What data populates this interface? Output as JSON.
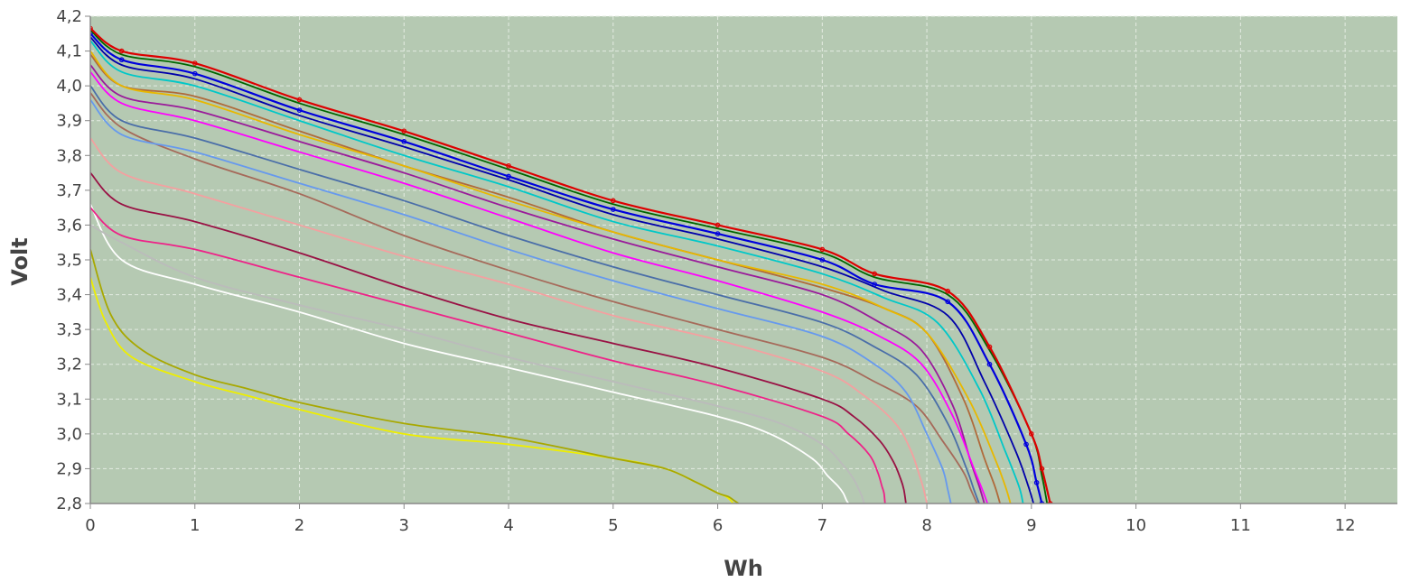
{
  "chart_data": {
    "type": "line",
    "title": "",
    "xlabel": "Wh",
    "ylabel": "Volt",
    "xlim": [
      0,
      12.5
    ],
    "ylim": [
      2.8,
      4.2
    ],
    "x_ticks": [
      0,
      1,
      2,
      3,
      4,
      5,
      6,
      7,
      8,
      9,
      10,
      11,
      12
    ],
    "x_tick_labels": [
      "0",
      "1",
      "2",
      "3",
      "4",
      "5",
      "6",
      "7",
      "8",
      "9",
      "10",
      "11",
      "12"
    ],
    "y_ticks": [
      2.8,
      2.9,
      3.0,
      3.1,
      3.2,
      3.3,
      3.4,
      3.5,
      3.6,
      3.7,
      3.8,
      3.9,
      4.0,
      4.1,
      4.2
    ],
    "y_tick_labels": [
      "2,8",
      "2,9",
      "3,0",
      "3,1",
      "3,2",
      "3,3",
      "3,4",
      "3,5",
      "3,6",
      "3,7",
      "3,8",
      "3,9",
      "4,0",
      "4,1",
      "4,2"
    ],
    "grid": true,
    "legend": "none",
    "colors": {
      "plot_background": "#b5c9b2",
      "grid": "#e4ece2",
      "axis": "#888888"
    },
    "series": [
      {
        "color": "#dd0000",
        "marker": true,
        "x": [
          0,
          0.3,
          1,
          2,
          3,
          4,
          5,
          6,
          7,
          7.5,
          8.2,
          8.6,
          9.0,
          9.1,
          9.18
        ],
        "y": [
          4.165,
          4.1,
          4.065,
          3.96,
          3.87,
          3.77,
          3.67,
          3.6,
          3.53,
          3.46,
          3.41,
          3.25,
          3.0,
          2.9,
          2.8
        ]
      },
      {
        "color": "#006600",
        "marker": false,
        "x": [
          0,
          0.3,
          1,
          2,
          3,
          4,
          5,
          6,
          7,
          7.5,
          8.2,
          8.6,
          9.0,
          9.1,
          9.15
        ],
        "y": [
          4.16,
          4.09,
          4.055,
          3.95,
          3.86,
          3.76,
          3.66,
          3.59,
          3.52,
          3.45,
          3.4,
          3.24,
          3.0,
          2.88,
          2.8
        ]
      },
      {
        "color": "#0000dd",
        "marker": true,
        "x": [
          0,
          0.3,
          1,
          2,
          3,
          4,
          5,
          6,
          7,
          7.5,
          8.2,
          8.6,
          8.95,
          9.05,
          9.1
        ],
        "y": [
          4.15,
          4.075,
          4.035,
          3.93,
          3.84,
          3.74,
          3.645,
          3.575,
          3.5,
          3.43,
          3.38,
          3.2,
          2.97,
          2.86,
          2.8
        ]
      },
      {
        "color": "#0000aa",
        "marker": false,
        "x": [
          0,
          0.3,
          1,
          2,
          3,
          4,
          5,
          6,
          7,
          7.6,
          8.2,
          8.55,
          8.85,
          8.97,
          9.02
        ],
        "y": [
          4.14,
          4.06,
          4.02,
          3.915,
          3.825,
          3.73,
          3.63,
          3.56,
          3.48,
          3.41,
          3.34,
          3.15,
          2.95,
          2.85,
          2.8
        ]
      },
      {
        "color": "#00c8c8",
        "marker": false,
        "x": [
          0,
          0.3,
          1,
          2,
          3,
          4,
          5,
          6,
          7,
          7.6,
          8.1,
          8.5,
          8.75,
          8.88,
          8.92
        ],
        "y": [
          4.13,
          4.04,
          4.0,
          3.9,
          3.8,
          3.71,
          3.61,
          3.54,
          3.46,
          3.39,
          3.32,
          3.13,
          2.95,
          2.85,
          2.8
        ]
      },
      {
        "color": "#e8b800",
        "marker": false,
        "x": [
          0,
          0.3,
          1,
          2,
          3,
          4,
          5,
          6,
          7,
          7.6,
          8.0,
          8.4,
          8.65,
          8.75,
          8.8
        ],
        "y": [
          4.1,
          4.0,
          3.96,
          3.86,
          3.77,
          3.67,
          3.58,
          3.5,
          3.43,
          3.36,
          3.29,
          3.1,
          2.93,
          2.85,
          2.8
        ]
      },
      {
        "color": "#b06a3a",
        "marker": false,
        "x": [
          0,
          0.3,
          1,
          2,
          3,
          4,
          5,
          6,
          7,
          7.6,
          8.0,
          8.35,
          8.55,
          8.65,
          8.7
        ],
        "y": [
          4.09,
          4.0,
          3.97,
          3.87,
          3.77,
          3.68,
          3.58,
          3.5,
          3.42,
          3.36,
          3.29,
          3.1,
          2.93,
          2.85,
          2.8
        ]
      },
      {
        "color": "#ff00ff",
        "marker": false,
        "x": [
          0,
          0.3,
          1,
          2,
          3,
          4,
          5,
          6,
          7,
          7.55,
          7.95,
          8.25,
          8.45,
          8.53,
          8.58
        ],
        "y": [
          4.04,
          3.95,
          3.9,
          3.81,
          3.72,
          3.62,
          3.52,
          3.44,
          3.35,
          3.28,
          3.2,
          3.05,
          2.9,
          2.84,
          2.8
        ]
      },
      {
        "color": "#9a1a9a",
        "marker": false,
        "x": [
          0,
          0.3,
          1,
          2,
          3,
          4,
          5,
          6,
          7,
          7.55,
          7.95,
          8.25,
          8.42,
          8.5,
          8.55
        ],
        "y": [
          4.06,
          3.97,
          3.93,
          3.84,
          3.75,
          3.65,
          3.56,
          3.48,
          3.4,
          3.32,
          3.24,
          3.08,
          2.92,
          2.85,
          2.8
        ]
      },
      {
        "color": "#4a6ea8",
        "marker": false,
        "x": [
          0,
          0.3,
          1,
          2,
          3,
          4,
          5,
          6,
          7,
          7.5,
          7.9,
          8.2,
          8.38,
          8.45,
          8.5
        ],
        "y": [
          4.0,
          3.9,
          3.85,
          3.76,
          3.67,
          3.57,
          3.48,
          3.4,
          3.32,
          3.25,
          3.17,
          3.03,
          2.9,
          2.84,
          2.8
        ]
      },
      {
        "color": "#6699ee",
        "marker": false,
        "x": [
          0,
          0.3,
          1,
          2,
          3,
          4,
          5,
          6,
          7,
          7.5,
          7.8,
          8.0,
          8.15,
          8.2,
          8.23
        ],
        "y": [
          3.96,
          3.86,
          3.81,
          3.72,
          3.63,
          3.53,
          3.44,
          3.36,
          3.28,
          3.2,
          3.12,
          3.0,
          2.9,
          2.84,
          2.8
        ]
      },
      {
        "color": "#a66a5a",
        "marker": false,
        "x": [
          0,
          0.3,
          1,
          2,
          3,
          4,
          5,
          6,
          7,
          7.5,
          7.9,
          8.15,
          8.35,
          8.42,
          8.48
        ],
        "y": [
          3.98,
          3.88,
          3.79,
          3.69,
          3.57,
          3.47,
          3.38,
          3.3,
          3.22,
          3.15,
          3.08,
          2.98,
          2.89,
          2.84,
          2.8
        ]
      },
      {
        "color": "#f4a0a0",
        "marker": false,
        "x": [
          0,
          0.3,
          1,
          2,
          3,
          4,
          5,
          6,
          7,
          7.4,
          7.7,
          7.85,
          7.93,
          7.97,
          8.0
        ],
        "y": [
          3.85,
          3.75,
          3.69,
          3.6,
          3.51,
          3.43,
          3.34,
          3.27,
          3.18,
          3.11,
          3.03,
          2.95,
          2.88,
          2.84,
          2.8
        ]
      },
      {
        "color": "#991144",
        "marker": false,
        "x": [
          0,
          0.3,
          1,
          2,
          3,
          4,
          5,
          6,
          7,
          7.3,
          7.55,
          7.68,
          7.75,
          7.78,
          7.8
        ],
        "y": [
          3.75,
          3.66,
          3.61,
          3.52,
          3.42,
          3.33,
          3.26,
          3.19,
          3.1,
          3.05,
          2.98,
          2.92,
          2.87,
          2.84,
          2.8
        ]
      },
      {
        "color": "#ee2288",
        "marker": false,
        "x": [
          0,
          0.3,
          1,
          2,
          3,
          4,
          5,
          6,
          7,
          7.25,
          7.45,
          7.53,
          7.57,
          7.59,
          7.6
        ],
        "y": [
          3.65,
          3.57,
          3.53,
          3.45,
          3.37,
          3.29,
          3.21,
          3.14,
          3.05,
          3.0,
          2.94,
          2.89,
          2.85,
          2.83,
          2.8
        ]
      },
      {
        "color": "#bbbbbb",
        "marker": false,
        "x": [
          0,
          0.3,
          1,
          2,
          3,
          4,
          5,
          6,
          6.6,
          7.0,
          7.2,
          7.3,
          7.35,
          7.38,
          7.4
        ],
        "y": [
          3.6,
          3.55,
          3.45,
          3.37,
          3.3,
          3.22,
          3.15,
          3.08,
          3.03,
          2.97,
          2.91,
          2.87,
          2.84,
          2.82,
          2.8
        ]
      },
      {
        "color": "#ffffff",
        "marker": false,
        "x": [
          0,
          0.3,
          1,
          2,
          3,
          4,
          5,
          6,
          6.5,
          6.9,
          7.05,
          7.15,
          7.2,
          7.23,
          7.25
        ],
        "y": [
          3.66,
          3.5,
          3.43,
          3.35,
          3.26,
          3.19,
          3.12,
          3.05,
          3.0,
          2.93,
          2.88,
          2.85,
          2.83,
          2.81,
          2.8
        ]
      },
      {
        "color": "#a8a800",
        "marker": false,
        "x": [
          0,
          0.2,
          0.5,
          1,
          1.5,
          2,
          3,
          4,
          5,
          5.5,
          5.8,
          6.0,
          6.1,
          6.15,
          6.2
        ],
        "y": [
          3.53,
          3.34,
          3.24,
          3.17,
          3.13,
          3.09,
          3.03,
          2.99,
          2.93,
          2.9,
          2.86,
          2.83,
          2.82,
          2.81,
          2.8
        ]
      },
      {
        "color": "#eeee00",
        "marker": false,
        "x": [
          0,
          0.15,
          0.4,
          1,
          1.5,
          2,
          3,
          4,
          5,
          5.5,
          5.8,
          6.0,
          6.08,
          6.12,
          6.15
        ],
        "y": [
          3.45,
          3.32,
          3.22,
          3.15,
          3.11,
          3.07,
          3.0,
          2.97,
          2.93,
          2.9,
          2.86,
          2.83,
          2.82,
          2.81,
          2.8
        ]
      }
    ]
  }
}
